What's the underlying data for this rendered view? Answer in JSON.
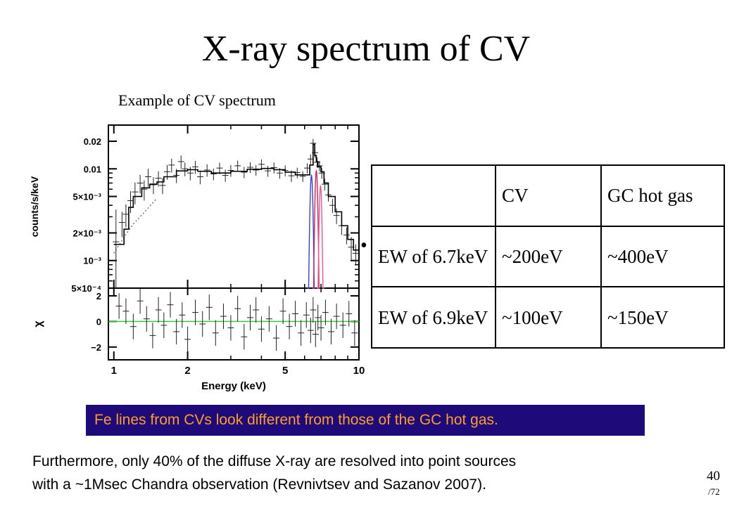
{
  "slide": {
    "title": "X-ray spectrum of CV",
    "caption": "Example of CV spectrum",
    "bullet": "•",
    "note": "Fe lines from CVs look different from those of the GC hot gas.",
    "paragraph_line1": "Furthermore, only 40% of the diffuse X-ray are resolved into point sources",
    "paragraph_line2": "with a ~1Msec Chandra observation (Revnivtsev and Sazanov 2007).",
    "page_number": "40",
    "page_total": "/72"
  },
  "table": {
    "header": [
      "",
      "CV",
      "GC hot gas"
    ],
    "rows": [
      [
        "EW of 6.7keV",
        "~200eV",
        "~400eV"
      ],
      [
        "EW of 6.9keV",
        "~100eV",
        "~150eV"
      ]
    ]
  },
  "chart_data": {
    "type": "scatter",
    "xlabel": "Energy (keV)",
    "x_scale": "log",
    "xlim": [
      0.95,
      10
    ],
    "x_ticks": [
      "1",
      "2",
      "5",
      "10"
    ],
    "top_panel": {
      "ylabel": "counts/s/keV",
      "y_scale": "log",
      "ylim": [
        0.0005,
        0.03
      ],
      "y_ticks": [
        "0.02",
        "0.01",
        "5×10⁻³",
        "2×10⁻³",
        "10⁻³",
        "5×10⁻⁴"
      ],
      "model_curve": [
        [
          1.0,
          0.0015
        ],
        [
          1.05,
          0.0015
        ],
        [
          1.1,
          0.0022
        ],
        [
          1.15,
          0.0038
        ],
        [
          1.2,
          0.005
        ],
        [
          1.3,
          0.0062
        ],
        [
          1.4,
          0.0068
        ],
        [
          1.5,
          0.0072
        ],
        [
          1.6,
          0.0082
        ],
        [
          1.8,
          0.0095
        ],
        [
          2.0,
          0.0098
        ],
        [
          2.2,
          0.0094
        ],
        [
          2.5,
          0.009
        ],
        [
          3.0,
          0.0094
        ],
        [
          3.5,
          0.0099
        ],
        [
          4.0,
          0.0101
        ],
        [
          4.5,
          0.0098
        ],
        [
          5.0,
          0.0092
        ],
        [
          5.5,
          0.0086
        ],
        [
          6.0,
          0.0086
        ],
        [
          6.3,
          0.011
        ],
        [
          6.5,
          0.0185
        ],
        [
          6.6,
          0.014
        ],
        [
          6.7,
          0.012
        ],
        [
          6.8,
          0.0105
        ],
        [
          7.0,
          0.0093
        ],
        [
          7.2,
          0.007
        ],
        [
          7.5,
          0.005
        ],
        [
          8.0,
          0.0034
        ],
        [
          8.5,
          0.0024
        ],
        [
          9.0,
          0.0017
        ],
        [
          9.5,
          0.0013
        ],
        [
          10.0,
          0.001
        ]
      ],
      "data_points": [
        [
          1.02,
          0.0016,
          0.002
        ],
        [
          1.08,
          0.0026,
          0.0008
        ],
        [
          1.12,
          0.0032,
          0.0009
        ],
        [
          1.17,
          0.0045,
          0.0012
        ],
        [
          1.22,
          0.0056,
          0.0015
        ],
        [
          1.28,
          0.007,
          0.0016
        ],
        [
          1.33,
          0.006,
          0.0015
        ],
        [
          1.38,
          0.0082,
          0.0018
        ],
        [
          1.45,
          0.0067,
          0.0014
        ],
        [
          1.52,
          0.0079,
          0.0015
        ],
        [
          1.58,
          0.0066,
          0.0013
        ],
        [
          1.65,
          0.0093,
          0.0017
        ],
        [
          1.72,
          0.011,
          0.0019
        ],
        [
          1.8,
          0.0085,
          0.0015
        ],
        [
          1.88,
          0.012,
          0.002
        ],
        [
          1.95,
          0.01,
          0.0017
        ],
        [
          2.05,
          0.009,
          0.0015
        ],
        [
          2.15,
          0.0105,
          0.0017
        ],
        [
          2.25,
          0.0082,
          0.0014
        ],
        [
          2.4,
          0.0097,
          0.0015
        ],
        [
          2.55,
          0.0088,
          0.0013
        ],
        [
          2.7,
          0.0102,
          0.0015
        ],
        [
          2.85,
          0.0085,
          0.0013
        ],
        [
          3.0,
          0.0096,
          0.0014
        ],
        [
          3.2,
          0.0108,
          0.0015
        ],
        [
          3.4,
          0.0092,
          0.0013
        ],
        [
          3.6,
          0.0104,
          0.0014
        ],
        [
          3.8,
          0.0097,
          0.0013
        ],
        [
          4.0,
          0.0112,
          0.0015
        ],
        [
          4.25,
          0.0095,
          0.0013
        ],
        [
          4.5,
          0.0103,
          0.0014
        ],
        [
          4.75,
          0.009,
          0.0012
        ],
        [
          5.0,
          0.0096,
          0.0013
        ],
        [
          5.3,
          0.0084,
          0.0012
        ],
        [
          5.6,
          0.0091,
          0.0012
        ],
        [
          5.9,
          0.0083,
          0.0011
        ],
        [
          6.15,
          0.0102,
          0.0013
        ],
        [
          6.35,
          0.0128,
          0.0016
        ],
        [
          6.5,
          0.019,
          0.0022
        ],
        [
          6.62,
          0.015,
          0.0018
        ],
        [
          6.75,
          0.0118,
          0.0015
        ],
        [
          6.9,
          0.0108,
          0.0014
        ],
        [
          7.05,
          0.009,
          0.0012
        ],
        [
          7.25,
          0.0068,
          0.001
        ],
        [
          7.5,
          0.0052,
          0.0008
        ],
        [
          7.8,
          0.004,
          0.0007
        ],
        [
          8.1,
          0.0031,
          0.0006
        ],
        [
          8.5,
          0.0024,
          0.0005
        ],
        [
          8.9,
          0.0019,
          0.0004
        ],
        [
          9.3,
          0.0014,
          0.0004
        ],
        [
          9.7,
          0.0012,
          0.0003
        ]
      ],
      "line_components": [
        {
          "color": "#3344dd",
          "center_keV": 6.4,
          "peak": 0.0085
        },
        {
          "color": "#dd2255",
          "center_keV": 6.7,
          "peak": 0.0095
        },
        {
          "color": "#ee5599",
          "center_keV": 6.97,
          "peak": 0.0065
        }
      ],
      "continuum_dotted": [
        [
          1.0,
          0.0012
        ],
        [
          1.1,
          0.0018
        ],
        [
          1.2,
          0.0025
        ],
        [
          1.35,
          0.0035
        ],
        [
          1.5,
          0.0048
        ]
      ]
    },
    "bottom_panel": {
      "ylabel": "χ",
      "ylim": [
        -3,
        2.6
      ],
      "y_ticks": [
        "2",
        "0",
        "−2"
      ],
      "zero_line_color": "#33cc33",
      "residuals": [
        [
          1.05,
          1.2,
          1
        ],
        [
          1.12,
          0.8,
          1
        ],
        [
          1.2,
          -0.4,
          1
        ],
        [
          1.28,
          1.6,
          1
        ],
        [
          1.36,
          0.2,
          1
        ],
        [
          1.44,
          -1.1,
          1
        ],
        [
          1.52,
          0.9,
          1
        ],
        [
          1.6,
          -0.3,
          1
        ],
        [
          1.7,
          1.3,
          1
        ],
        [
          1.8,
          -0.8,
          1
        ],
        [
          1.9,
          0.5,
          1
        ],
        [
          2.0,
          -1.4,
          1
        ],
        [
          2.15,
          0.7,
          1
        ],
        [
          2.3,
          -0.2,
          1
        ],
        [
          2.45,
          1.1,
          1
        ],
        [
          2.6,
          -0.9,
          1
        ],
        [
          2.8,
          0.4,
          1
        ],
        [
          3.0,
          -0.5,
          1
        ],
        [
          3.2,
          1.0,
          1
        ],
        [
          3.4,
          -1.2,
          1
        ],
        [
          3.6,
          0.3,
          1
        ],
        [
          3.8,
          0.9,
          1
        ],
        [
          4.0,
          -0.6,
          1
        ],
        [
          4.3,
          0.2,
          1
        ],
        [
          4.6,
          -1.3,
          1
        ],
        [
          4.9,
          0.8,
          1
        ],
        [
          5.2,
          -0.4,
          1
        ],
        [
          5.5,
          0.6,
          1
        ],
        [
          5.8,
          -0.9,
          1
        ],
        [
          6.1,
          0.5,
          1
        ],
        [
          6.35,
          -0.7,
          1
        ],
        [
          6.5,
          0.9,
          1
        ],
        [
          6.65,
          -1.0,
          1
        ],
        [
          6.8,
          0.3,
          1
        ],
        [
          7.0,
          -0.5,
          1
        ],
        [
          7.3,
          0.7,
          1
        ],
        [
          7.7,
          -0.8,
          1
        ],
        [
          8.1,
          0.4,
          1
        ],
        [
          8.6,
          -0.3,
          1
        ],
        [
          9.1,
          0.6,
          1
        ],
        [
          9.6,
          -0.9,
          1
        ]
      ]
    }
  }
}
